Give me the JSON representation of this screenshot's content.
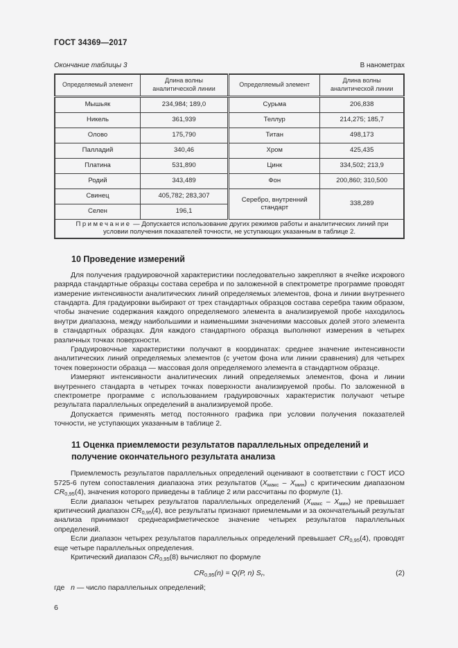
{
  "page": {
    "doc_number": "ГОСТ 34369—2017",
    "table_caption": "Окончание таблицы 3",
    "units_label": "В нанометрах",
    "page_number": "6"
  },
  "table": {
    "headers": [
      "Определяемый элемент",
      "Длина волны аналитической линии",
      "Определяемый элемент",
      "Длина волны аналитической линии"
    ],
    "rows": [
      {
        "el1": "Мышьяк",
        "wl1": "234,984; 189,0",
        "el2": "Сурьма",
        "wl2": "206,838"
      },
      {
        "el1": "Никель",
        "wl1": "361,939",
        "el2": "Теллур",
        "wl2": "214,275; 185,7"
      },
      {
        "el1": "Олово",
        "wl1": "175,790",
        "el2": "Титан",
        "wl2": "498,173"
      },
      {
        "el1": "Палладий",
        "wl1": "340,46",
        "el2": "Хром",
        "wl2": "425,435"
      },
      {
        "el1": "Платина",
        "wl1": "531,890",
        "el2": "Цинк",
        "wl2": "334,502; 213,9"
      },
      {
        "el1": "Родий",
        "wl1": "343,489",
        "el2": "Фон",
        "wl2": "200,860; 310,500"
      },
      {
        "el1": "Свинец",
        "wl1": "405,782; 283,307",
        "el2": "Серебро, внутренний стандарт",
        "wl2": "338,289",
        "rowspan2": 2
      },
      {
        "el1": "Селен",
        "wl1": "196,1",
        "el2": null,
        "wl2": null
      }
    ],
    "note_segments": [
      {
        "t": "Примечание",
        "sp": 1
      },
      {
        "t": " — Допускается использование других режимов работы и аналитических линий при условии получения показателей точности, не уступающих указанным в таблице 2."
      }
    ]
  },
  "sections": {
    "s10": {
      "heading": "10 Проведение измерений",
      "paragraphs": [
        "Для получения градуировочной характеристики последовательно закрепляют в ячейке искрового разряда стандартные образцы состава серебра и по заложенной в спектрометре программе проводят измерение интенсивности аналитических линий определяемых элементов, фона и линии внутреннего стандарта. Для градуировки выбирают от трех стандартных образцов состава серебра таким образом, чтобы значение содержания каждого определяемого элемента в анализируемой пробе находилось внутри диапазона, между наибольшими и наименьшими значениями массовых долей этого элемента в стандартных образцах. Для каждого стандартного образца выполняют измерения в четырех различных точках поверхности.",
        "Градуировочные характеристики получают в координатах: среднее значение интенсивности аналитических линий определяемых элементов (с учетом фона или линии сравнения) для четырех точек поверхности образца — массовая доля определяемого элемента в стандартном образце.",
        "Измеряют интенсивности аналитических линий определяемых элементов, фона и линии внутреннего стандарта в четырех точках поверхности анализируемой пробы. По заложенной в спектрометре программе с использованием градуировочных характеристик получают четыре результата параллельных определений в анализируемой пробе.",
        "Допускается применять метод постоянного графика при условии получения показателей точности, не уступающих указанным в таблице 2."
      ]
    },
    "s11": {
      "heading": "11 Оценка приемлемости результатов параллельных определений и получение окончательного результата анализа",
      "paragraphs": [
        [
          {
            "t": "Приемлемость результатов параллельных определений оценивают в соответствии с ГОСТ ИСО 5725-6 путем сопоставления диапазона этих результатов ("
          },
          {
            "t": "Х",
            "i": 1
          },
          {
            "t": "макс",
            "sub": 1
          },
          {
            "t": " – "
          },
          {
            "t": "Х",
            "i": 1
          },
          {
            "t": "мин",
            "sub": 1
          },
          {
            "t": ") с критическим диапазоном "
          },
          {
            "t": "CR",
            "i": 1
          },
          {
            "t": "0,95",
            "sub": 1
          },
          {
            "t": "(4), значения которого приведены в таблице 2 или рассчитаны по формуле (1)."
          }
        ],
        [
          {
            "t": "Если диапазон четырех результатов параллельных определений ("
          },
          {
            "t": "Х",
            "i": 1
          },
          {
            "t": "макс",
            "sub": 1
          },
          {
            "t": " – "
          },
          {
            "t": "Х",
            "i": 1
          },
          {
            "t": "мин",
            "sub": 1
          },
          {
            "t": ") не превышает критический диапазон "
          },
          {
            "t": "CR",
            "i": 1
          },
          {
            "t": "0,95",
            "sub": 1
          },
          {
            "t": "(4), все результаты признают приемлемыми и за окончательный результат анализа принимают среднеарифметическое значение четырех результатов параллельных определений."
          }
        ],
        [
          {
            "t": "Если диапазон четырех результатов параллельных определений превышает "
          },
          {
            "t": "CR",
            "i": 1
          },
          {
            "t": "0,95",
            "sub": 1
          },
          {
            "t": "(4), проводят еще четыре параллельных определения."
          }
        ],
        [
          {
            "t": "Критический диапазон "
          },
          {
            "t": "CR",
            "i": 1
          },
          {
            "t": "0,95",
            "sub": 1
          },
          {
            "t": "(8) вычисляют по формуле"
          }
        ]
      ]
    }
  },
  "formula": {
    "segments": [
      {
        "t": "CR",
        "i": 1
      },
      {
        "t": "0,95",
        "sub": 1
      },
      {
        "t": "(n) = Q(P, n) S",
        "i": 1
      },
      {
        "t": "r",
        "sub": 1,
        "i": 1
      },
      {
        "t": ","
      }
    ],
    "number": "(2)",
    "where_segments": [
      {
        "t": "где   "
      },
      {
        "t": "n",
        "i": 1
      },
      {
        "t": " — число параллельных определений;"
      }
    ]
  }
}
